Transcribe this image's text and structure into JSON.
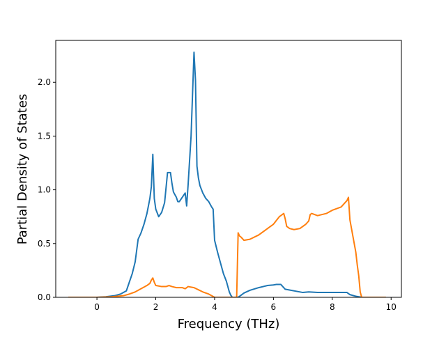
{
  "chart_data": {
    "type": "line",
    "title": "",
    "xlabel": "Frequency (THz)",
    "ylabel": "Partial Density of States",
    "xlim": [
      -1.4,
      10.35
    ],
    "ylim": [
      0.0,
      2.39
    ],
    "xticks": [
      0,
      2,
      4,
      6,
      8,
      10
    ],
    "yticks": [
      0.0,
      0.5,
      1.0,
      1.5,
      2.0
    ],
    "xtick_labels": [
      "0",
      "2",
      "4",
      "6",
      "8",
      "10"
    ],
    "ytick_labels": [
      "0.0",
      "0.5",
      "1.0",
      "1.5",
      "2.0"
    ],
    "grid": false,
    "legend": "none",
    "series": [
      {
        "color": "#1f77b4",
        "x": [
          -0.95,
          0.0,
          0.3,
          0.6,
          0.8,
          1.0,
          1.1,
          1.2,
          1.3,
          1.4,
          1.5,
          1.6,
          1.7,
          1.8,
          1.85,
          1.9,
          1.95,
          2.0,
          2.1,
          2.2,
          2.3,
          2.4,
          2.45,
          2.5,
          2.55,
          2.6,
          2.7,
          2.75,
          2.8,
          2.9,
          3.0,
          3.05,
          3.1,
          3.2,
          3.3,
          3.35,
          3.4,
          3.45,
          3.5,
          3.6,
          3.7,
          3.8,
          3.9,
          3.95,
          4.0,
          4.1,
          4.2,
          4.3,
          4.4,
          4.5,
          4.55,
          4.6,
          4.8,
          4.9,
          5.0,
          5.2,
          5.5,
          5.8,
          6.0,
          6.1,
          6.25,
          6.4,
          7.0,
          7.2,
          7.5,
          8.5,
          8.6,
          8.8,
          9.0,
          9.5,
          9.8
        ],
        "y": [
          0.0,
          0.0,
          0.005,
          0.015,
          0.03,
          0.06,
          0.14,
          0.22,
          0.33,
          0.54,
          0.6,
          0.68,
          0.78,
          0.92,
          1.03,
          1.33,
          0.92,
          0.82,
          0.75,
          0.79,
          0.88,
          1.16,
          1.16,
          1.16,
          1.06,
          0.98,
          0.93,
          0.89,
          0.89,
          0.93,
          0.97,
          0.85,
          1.05,
          1.5,
          2.28,
          2.02,
          1.22,
          1.11,
          1.04,
          0.97,
          0.92,
          0.89,
          0.84,
          0.82,
          0.53,
          0.42,
          0.32,
          0.22,
          0.15,
          0.05,
          0.02,
          0.0,
          0.0,
          0.02,
          0.04,
          0.065,
          0.09,
          0.11,
          0.115,
          0.12,
          0.12,
          0.075,
          0.045,
          0.05,
          0.045,
          0.045,
          0.025,
          0.01,
          0.0,
          0.0,
          0.0
        ]
      },
      {
        "color": "#ff7f0e",
        "x": [
          -0.95,
          0.0,
          0.5,
          0.9,
          1.1,
          1.3,
          1.5,
          1.7,
          1.8,
          1.85,
          1.9,
          1.95,
          2.0,
          2.2,
          2.35,
          2.45,
          2.55,
          2.7,
          2.9,
          3.0,
          3.1,
          3.2,
          3.3,
          3.45,
          3.6,
          3.8,
          4.0,
          4.3,
          4.7,
          4.75,
          4.8,
          4.85,
          4.9,
          5.0,
          5.2,
          5.5,
          5.8,
          6.0,
          6.2,
          6.25,
          6.35,
          6.4,
          6.45,
          6.55,
          6.7,
          6.9,
          7.1,
          7.2,
          7.25,
          7.3,
          7.5,
          7.8,
          8.0,
          8.3,
          8.5,
          8.55,
          8.6,
          8.8,
          8.85,
          8.9,
          8.95,
          9.0,
          9.5,
          9.8
        ],
        "y": [
          0.0,
          0.0,
          0.005,
          0.015,
          0.03,
          0.05,
          0.08,
          0.11,
          0.13,
          0.16,
          0.18,
          0.14,
          0.11,
          0.1,
          0.1,
          0.11,
          0.1,
          0.09,
          0.09,
          0.08,
          0.1,
          0.095,
          0.09,
          0.07,
          0.05,
          0.03,
          0.0,
          0.0,
          0.0,
          0.0,
          0.6,
          0.57,
          0.56,
          0.53,
          0.54,
          0.58,
          0.64,
          0.68,
          0.75,
          0.76,
          0.78,
          0.73,
          0.66,
          0.64,
          0.63,
          0.64,
          0.68,
          0.71,
          0.77,
          0.78,
          0.76,
          0.78,
          0.81,
          0.84,
          0.9,
          0.93,
          0.72,
          0.42,
          0.3,
          0.2,
          0.05,
          0.0,
          0.0,
          0.0
        ]
      }
    ]
  }
}
